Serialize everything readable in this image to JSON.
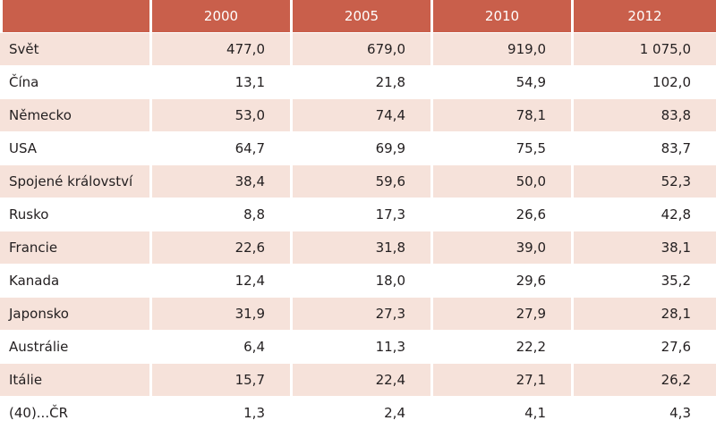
{
  "table": {
    "header": [
      "",
      "2000",
      "2005",
      "2010",
      "2012"
    ],
    "rows": [
      {
        "label": "Svět",
        "values": [
          "477,0",
          "679,0",
          "919,0",
          "1 075,0"
        ]
      },
      {
        "label": "Čína",
        "values": [
          "13,1",
          "21,8",
          "54,9",
          "102,0"
        ]
      },
      {
        "label": "Německo",
        "values": [
          "53,0",
          "74,4",
          "78,1",
          "83,8"
        ]
      },
      {
        "label": "USA",
        "values": [
          "64,7",
          "69,9",
          "75,5",
          "83,7"
        ]
      },
      {
        "label": "Spojené království",
        "values": [
          "38,4",
          "59,6",
          "50,0",
          "52,3"
        ]
      },
      {
        "label": "Rusko",
        "values": [
          "8,8",
          "17,3",
          "26,6",
          "42,8"
        ]
      },
      {
        "label": "Francie",
        "values": [
          "22,6",
          "31,8",
          "39,0",
          "38,1"
        ]
      },
      {
        "label": "Kanada",
        "values": [
          "12,4",
          "18,0",
          "29,6",
          "35,2"
        ]
      },
      {
        "label": "Japonsko",
        "values": [
          "31,9",
          "27,3",
          "27,9",
          "28,1"
        ]
      },
      {
        "label": "Austrálie",
        "values": [
          "6,4",
          "11,3",
          "22,2",
          "27,6"
        ]
      },
      {
        "label": "Itálie",
        "values": [
          "15,7",
          "22,4",
          "27,1",
          "26,2"
        ]
      },
      {
        "label": "(40)...ČR",
        "values": [
          "1,3",
          "2,4",
          "4,1",
          "4,3"
        ]
      }
    ]
  },
  "colors": {
    "header_bg": "#c95f4b",
    "shaded_row_bg": "#f6e2da",
    "text": "#231f20"
  }
}
